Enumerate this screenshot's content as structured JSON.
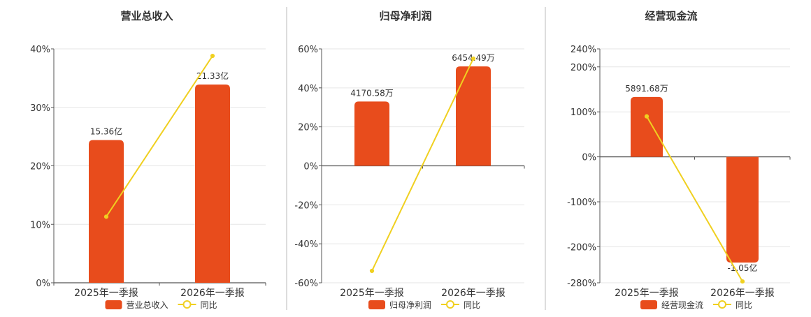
{
  "colors": {
    "bar": "#e84c1c",
    "line": "#f0d020",
    "axis": "#555555",
    "grid": "#e6e6e6",
    "divider": "#bbbbbb",
    "text": "#333333"
  },
  "chart_data": [
    {
      "type": "bar",
      "title": "营业总收入",
      "categories": [
        "2025年一季报",
        "2026年一季报"
      ],
      "y_ticks": [
        "0%",
        "10%",
        "20%",
        "30%",
        "40%"
      ],
      "ylim": [
        0,
        40
      ],
      "series": [
        {
          "name": "营业总收入",
          "type": "bar",
          "values_yoy_pct": [
            24.4,
            33.9
          ],
          "labels": [
            "15.36亿",
            "21.33亿"
          ]
        },
        {
          "name": "同比",
          "type": "line",
          "values": [
            11.3,
            38.8
          ]
        }
      ],
      "legend": {
        "position": "bottom",
        "items": [
          "营业总收入",
          "同比"
        ]
      },
      "grid": true
    },
    {
      "type": "bar",
      "title": "归母净利润",
      "categories": [
        "2025年一季报",
        "2026年一季报"
      ],
      "y_ticks": [
        "60%",
        "40%",
        "20%",
        "0%",
        "-20%",
        "-40%",
        "-60%"
      ],
      "ylim": [
        -60,
        60
      ],
      "series": [
        {
          "name": "归母净利润",
          "type": "bar",
          "values_yoy_pct": [
            33.0,
            51.0
          ],
          "labels": [
            "4170.58万",
            "6454.49万"
          ]
        },
        {
          "name": "同比",
          "type": "line",
          "values": [
            -53.9,
            55.0
          ]
        }
      ],
      "legend": {
        "position": "bottom",
        "items": [
          "归母净利润",
          "同比"
        ]
      },
      "grid": true
    },
    {
      "type": "bar",
      "title": "经营现金流",
      "categories": [
        "2025年一季报",
        "2026年一季报"
      ],
      "y_ticks": [
        "240%",
        "200%",
        "100%",
        "0%",
        "-100%",
        "-200%",
        "-280%"
      ],
      "ylim": [
        -280,
        240
      ],
      "series": [
        {
          "name": "经营现金流",
          "type": "bar",
          "values_yoy_pct": [
            133,
            -235
          ],
          "labels": [
            "5891.68万",
            "-1.05亿"
          ]
        },
        {
          "name": "同比",
          "type": "line",
          "values": [
            90,
            -277
          ]
        }
      ],
      "legend": {
        "position": "bottom",
        "items": [
          "经营现金流",
          "同比"
        ]
      },
      "grid": true
    }
  ]
}
